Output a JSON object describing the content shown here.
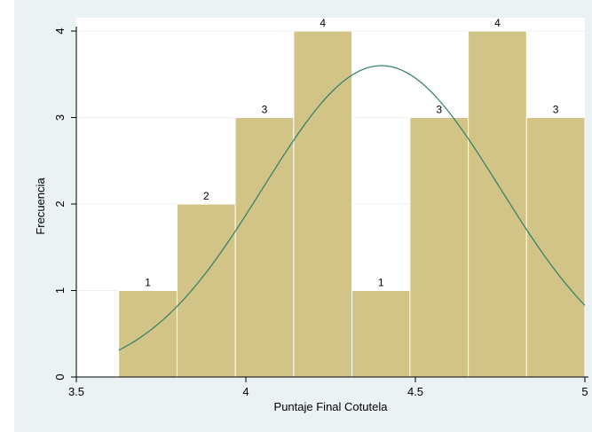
{
  "chart_data": {
    "type": "bar",
    "xlabel": "Puntaje Final Cotutela",
    "ylabel": "Frecuencia",
    "xlim": [
      3.5,
      5.0
    ],
    "ylim": [
      0,
      4
    ],
    "x_ticks": [
      "3.5",
      "4",
      "4.5",
      "5"
    ],
    "y_ticks": [
      "0",
      "1",
      "2",
      "3",
      "4"
    ],
    "bins": [
      {
        "x0": 3.625,
        "x1": 3.797,
        "value": 1,
        "label": "1"
      },
      {
        "x0": 3.797,
        "x1": 3.969,
        "value": 2,
        "label": "2"
      },
      {
        "x0": 3.969,
        "x1": 4.141,
        "value": 3,
        "label": "3"
      },
      {
        "x0": 4.141,
        "x1": 4.313,
        "value": 4,
        "label": "4"
      },
      {
        "x0": 4.313,
        "x1": 4.484,
        "value": 1,
        "label": "1"
      },
      {
        "x0": 4.484,
        "x1": 4.656,
        "value": 3,
        "label": "3"
      },
      {
        "x0": 4.656,
        "x1": 4.828,
        "value": 4,
        "label": "4"
      },
      {
        "x0": 4.828,
        "x1": 5.0,
        "value": 3,
        "label": "3"
      }
    ],
    "normal_curve": {
      "mean": 4.4,
      "sd": 0.35,
      "peak": 3.6,
      "x_start": 3.625,
      "x_end": 5.0
    },
    "grid": true,
    "colors": {
      "bar_fill": "#d1c486",
      "bar_stroke": "#ffffff",
      "curve": "#2e7d6b",
      "plot_bg": "#ffffff",
      "outer_bg": "#eaf2f3",
      "grid": "#eaf2f3"
    }
  }
}
